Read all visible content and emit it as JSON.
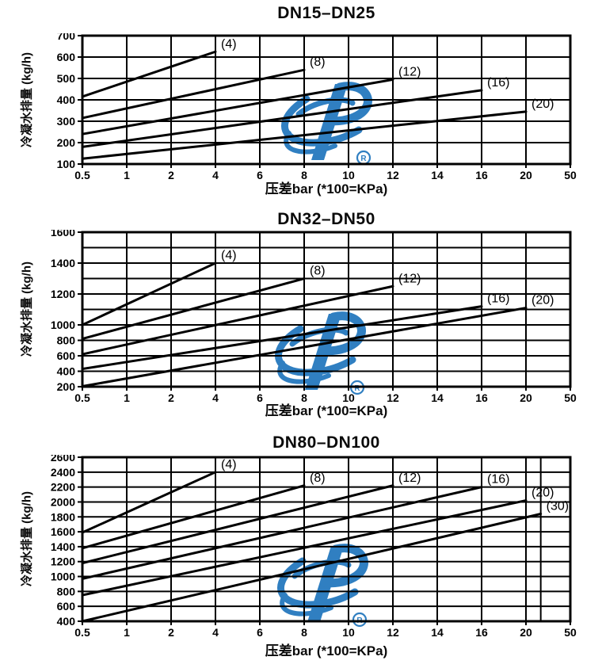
{
  "logo": {
    "name": "blue-swirl-P-trademark-watermark",
    "color": "#2579be",
    "registered_mark": "®"
  },
  "chart_data": [
    {
      "type": "line",
      "title": "DN15–DN25",
      "xlabel": "压差bar (*100=KPa)",
      "ylabel": "冷凝水排量 (kg/h)",
      "x_ticks": [
        0.5,
        1,
        2,
        4,
        6,
        8,
        10,
        12,
        14,
        16,
        20,
        50
      ],
      "x_scale_note": "non-linear axis: ticks evenly spaced",
      "y_gridlines": [
        700,
        600,
        500,
        400,
        300,
        200,
        100
      ],
      "y_tick_labels": [
        700,
        600,
        500,
        400,
        300,
        200,
        100
      ],
      "ylim": [
        100,
        700
      ],
      "grid": true,
      "series": [
        {
          "label": "(4)",
          "x": [
            0.5,
            4
          ],
          "y": [
            415,
            625
          ]
        },
        {
          "label": "(8)",
          "x": [
            0.5,
            8
          ],
          "y": [
            315,
            540
          ]
        },
        {
          "label": "(12)",
          "x": [
            0.5,
            12
          ],
          "y": [
            240,
            495
          ]
        },
        {
          "label": "(16)",
          "x": [
            0.5,
            16
          ],
          "y": [
            180,
            445
          ]
        },
        {
          "label": "(20)",
          "x": [
            0.5,
            20
          ],
          "y": [
            125,
            345
          ]
        }
      ]
    },
    {
      "type": "line",
      "title": "DN32–DN50",
      "xlabel": "压差bar (*100=KPa)",
      "ylabel": "冷凝水排量 (kg/h)",
      "x_ticks": [
        0.5,
        1,
        2,
        4,
        6,
        8,
        10,
        12,
        14,
        16,
        20,
        50
      ],
      "x_scale_note": "non-linear axis: ticks evenly spaced",
      "y_gridlines": [
        1600,
        1500,
        1400,
        1300,
        1200,
        1100,
        1000,
        800,
        600,
        400,
        200
      ],
      "y_tick_labels": [
        1600,
        1400,
        1200,
        1000,
        800,
        600,
        400,
        200
      ],
      "ylim": [
        200,
        1600
      ],
      "grid": true,
      "series": [
        {
          "label": "(4)",
          "x": [
            0.5,
            4
          ],
          "y": [
            1000,
            1400
          ]
        },
        {
          "label": "(8)",
          "x": [
            0.5,
            8
          ],
          "y": [
            820,
            1300
          ]
        },
        {
          "label": "(12)",
          "x": [
            0.5,
            12
          ],
          "y": [
            620,
            1250
          ]
        },
        {
          "label": "(16)",
          "x": [
            0.5,
            16
          ],
          "y": [
            430,
            1120
          ]
        },
        {
          "label": "(20)",
          "x": [
            0.5,
            20
          ],
          "y": [
            205,
            1110
          ]
        }
      ]
    },
    {
      "type": "line",
      "title": "DN80–DN100",
      "xlabel": "压差bar (*100=KPa)",
      "ylabel": "冷凝水排量 (kg/h)",
      "x_ticks": [
        0.5,
        1,
        2,
        4,
        6,
        8,
        10,
        12,
        14,
        16,
        20,
        50
      ],
      "x_scale_note": "non-linear axis: ticks evenly spaced",
      "extra_x_gridlines": [
        30
      ],
      "y_gridlines": [
        2600,
        2400,
        2200,
        2000,
        1800,
        1600,
        1400,
        1200,
        1000,
        800,
        600,
        400
      ],
      "y_tick_labels": [
        2600,
        2400,
        2200,
        2000,
        1800,
        1600,
        1400,
        1200,
        1000,
        800,
        600,
        400
      ],
      "ylim": [
        400,
        2600
      ],
      "grid": true,
      "series": [
        {
          "label": "(4)",
          "x": [
            0.5,
            4
          ],
          "y": [
            1590,
            2400
          ]
        },
        {
          "label": "(8)",
          "x": [
            0.5,
            8
          ],
          "y": [
            1380,
            2220
          ]
        },
        {
          "label": "(12)",
          "x": [
            0.5,
            12
          ],
          "y": [
            1180,
            2220
          ]
        },
        {
          "label": "(16)",
          "x": [
            0.5,
            16
          ],
          "y": [
            970,
            2200
          ]
        },
        {
          "label": "(20)",
          "x": [
            0.5,
            20
          ],
          "y": [
            750,
            2020
          ]
        },
        {
          "label": "(30)",
          "x": [
            0.5,
            30
          ],
          "y": [
            400,
            1840
          ]
        }
      ]
    }
  ]
}
